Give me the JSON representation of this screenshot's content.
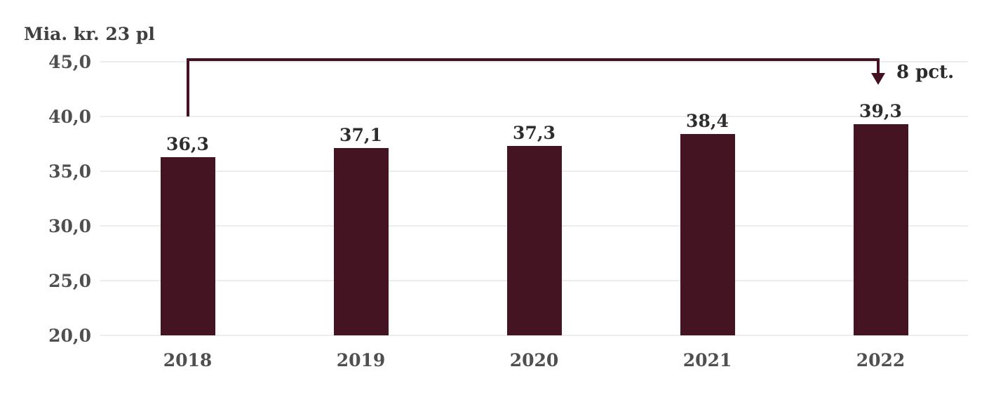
{
  "title": "Mia. kr. 23 pl",
  "annotation": {
    "label": "8 pct."
  },
  "colors": {
    "bar": "#451422",
    "arrow": "#431122",
    "gridline": "#ececec",
    "tick_text": "#4f4f4f",
    "value_text": "#2d2d2d",
    "title_text": "#3f3f3f",
    "background": "#ffffff"
  },
  "chart_data": {
    "type": "bar",
    "title": "Mia. kr. 23 pl",
    "xlabel": "",
    "ylabel": "Mia. kr. 23 pl",
    "categories": [
      "2018",
      "2019",
      "2020",
      "2021",
      "2022"
    ],
    "values": [
      36.3,
      37.1,
      37.3,
      38.4,
      39.3
    ],
    "value_labels": [
      "36,3",
      "37,1",
      "37,3",
      "38,4",
      "39,3"
    ],
    "ylim": [
      20,
      45
    ],
    "ytick_step": 5,
    "ytick_labels": [
      "20,0",
      "25,0",
      "30,0",
      "35,0",
      "40,0",
      "45,0"
    ],
    "grid": true,
    "legend": "none",
    "annotation": {
      "text": "8 pct.",
      "from_category": "2018",
      "to_category": "2022",
      "shape": "bracket-arrow-down"
    }
  }
}
